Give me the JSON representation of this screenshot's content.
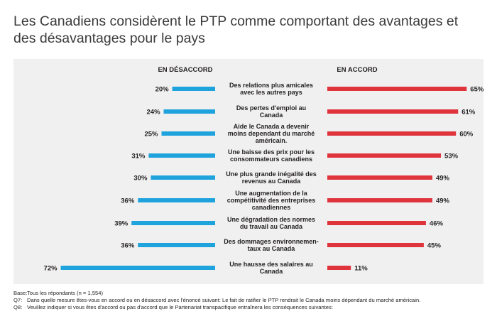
{
  "title": "Les Canadiens considèrent le PTP comme comportant des avantages et des désavantages pour le pays",
  "colors": {
    "disagree": "#1fa3dd",
    "agree": "#e0343d",
    "panel": "#f0f0f1"
  },
  "chart_data": {
    "type": "bar",
    "orientation": "horizontal-diverging",
    "left_header": "EN DÉSACCORD",
    "right_header": "EN ACCORD",
    "categories": [
      [
        "Des relations plus amicales",
        "avec les autres pays"
      ],
      [
        "Des pertes d'emploi au",
        "Canada"
      ],
      [
        "Aide le Canada a devenir",
        "moins dependant du marché",
        "américain."
      ],
      [
        "Une baisse des prix pour les",
        "consommateurs canadiens"
      ],
      [
        "Une plus grande inégalité des",
        "revenus au Canada"
      ],
      [
        "Une augmentation de la",
        "compétitivité des entreprises",
        "canadiennes"
      ],
      [
        "Une dégradation des normes",
        "du travail au Canada"
      ],
      [
        "Des dommages environnemen-",
        "taux au Canada"
      ],
      [
        "Une hausse des salaires au",
        "Canada"
      ]
    ],
    "series": [
      {
        "name": "EN DÉSACCORD",
        "values": [
          20,
          24,
          25,
          31,
          30,
          36,
          39,
          36,
          72
        ]
      },
      {
        "name": "EN ACCORD",
        "values": [
          65,
          61,
          60,
          53,
          49,
          49,
          46,
          45,
          11
        ]
      }
    ],
    "unit": "%"
  },
  "footer": [
    {
      "key": "Base:",
      "text": "Tous les répondants (n = 1,554)"
    },
    {
      "key": "Q7:",
      "text": "Dans quelle mesure êtes-vous en accord ou en désaccord avec l'énoncé suivant: Le fait de ratifier le PTP rendrait le Canada moins dépendant du marché américain."
    },
    {
      "key": "Q8:",
      "text": "Veuillez indiquer si vous êtes d'accord ou pas d'accord que le Partenariat transpacifique entraînera les conséquences suivantes:"
    }
  ]
}
